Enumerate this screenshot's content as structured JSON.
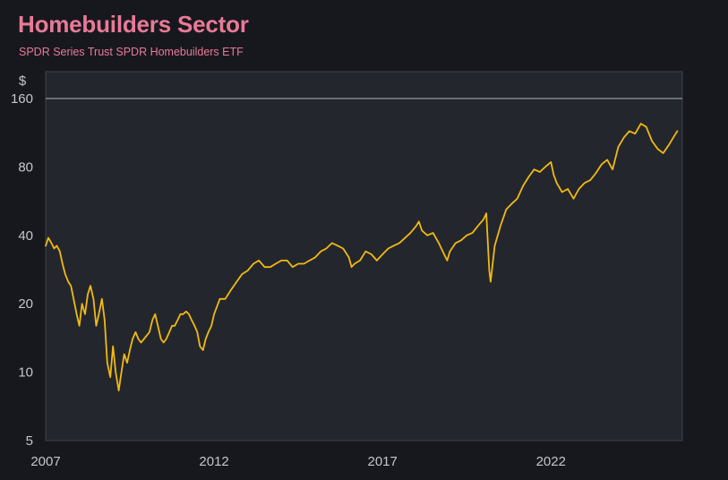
{
  "title": "Homebuilders Sector",
  "subtitle": "SPDR Series Trust SPDR Homebuilders ETF",
  "colors": {
    "background": "#17181d",
    "plot_background": "#23272d",
    "line": "#f2b911",
    "title": "#e87a97",
    "text": "#c4c6cc"
  },
  "chart_data": {
    "type": "line",
    "title": "Homebuilders Sector",
    "subtitle": "SPDR Series Trust SPDR Homebuilders ETF",
    "ylabel": "$",
    "xlabel": "",
    "y_scale": "log2",
    "ylim": [
      5,
      210
    ],
    "xlim": [
      2007.0,
      2025.9
    ],
    "y_ticks": [
      5,
      10,
      20,
      40,
      80,
      160
    ],
    "y_tick_labels": [
      "5",
      "10",
      "20",
      "40",
      "80",
      "160"
    ],
    "x_ticks": [
      2007,
      2012,
      2017,
      2022
    ],
    "x_tick_labels": [
      "2007",
      "2012",
      "2017",
      "2022"
    ],
    "grid": false,
    "series": [
      {
        "values": [
          [
            2007.0,
            36
          ],
          [
            2007.08,
            39
          ],
          [
            2007.17,
            37
          ],
          [
            2007.25,
            35
          ],
          [
            2007.33,
            36
          ],
          [
            2007.42,
            34
          ],
          [
            2007.5,
            30
          ],
          [
            2007.58,
            27
          ],
          [
            2007.67,
            25
          ],
          [
            2007.75,
            24
          ],
          [
            2007.83,
            21
          ],
          [
            2007.92,
            18
          ],
          [
            2008.0,
            16
          ],
          [
            2008.08,
            20
          ],
          [
            2008.17,
            18
          ],
          [
            2008.25,
            22
          ],
          [
            2008.33,
            24
          ],
          [
            2008.42,
            21
          ],
          [
            2008.5,
            16
          ],
          [
            2008.58,
            18
          ],
          [
            2008.67,
            21
          ],
          [
            2008.75,
            17
          ],
          [
            2008.83,
            11
          ],
          [
            2008.92,
            9.5
          ],
          [
            2009.0,
            13
          ],
          [
            2009.08,
            10
          ],
          [
            2009.17,
            8.3
          ],
          [
            2009.25,
            10
          ],
          [
            2009.33,
            12
          ],
          [
            2009.42,
            11
          ],
          [
            2009.5,
            12.5
          ],
          [
            2009.58,
            14
          ],
          [
            2009.67,
            15
          ],
          [
            2009.75,
            14
          ],
          [
            2009.83,
            13.5
          ],
          [
            2009.92,
            14
          ],
          [
            2010.0,
            14.5
          ],
          [
            2010.08,
            15
          ],
          [
            2010.17,
            17
          ],
          [
            2010.25,
            18
          ],
          [
            2010.33,
            16
          ],
          [
            2010.42,
            14
          ],
          [
            2010.5,
            13.5
          ],
          [
            2010.58,
            14
          ],
          [
            2010.67,
            15
          ],
          [
            2010.75,
            16
          ],
          [
            2010.83,
            16
          ],
          [
            2010.92,
            17
          ],
          [
            2011.0,
            18
          ],
          [
            2011.08,
            18
          ],
          [
            2011.17,
            18.5
          ],
          [
            2011.25,
            18
          ],
          [
            2011.33,
            17
          ],
          [
            2011.42,
            16
          ],
          [
            2011.5,
            15
          ],
          [
            2011.58,
            13
          ],
          [
            2011.67,
            12.5
          ],
          [
            2011.75,
            14
          ],
          [
            2011.83,
            15
          ],
          [
            2011.92,
            16
          ],
          [
            2012.0,
            18
          ],
          [
            2012.17,
            21
          ],
          [
            2012.33,
            21
          ],
          [
            2012.5,
            23
          ],
          [
            2012.67,
            25
          ],
          [
            2012.83,
            27
          ],
          [
            2013.0,
            28
          ],
          [
            2013.17,
            30
          ],
          [
            2013.33,
            31
          ],
          [
            2013.5,
            29
          ],
          [
            2013.67,
            29
          ],
          [
            2013.83,
            30
          ],
          [
            2014.0,
            31
          ],
          [
            2014.17,
            31
          ],
          [
            2014.33,
            29
          ],
          [
            2014.5,
            30
          ],
          [
            2014.67,
            30
          ],
          [
            2014.83,
            31
          ],
          [
            2015.0,
            32
          ],
          [
            2015.17,
            34
          ],
          [
            2015.33,
            35
          ],
          [
            2015.5,
            37
          ],
          [
            2015.67,
            36
          ],
          [
            2015.83,
            35
          ],
          [
            2016.0,
            32
          ],
          [
            2016.08,
            29
          ],
          [
            2016.17,
            30
          ],
          [
            2016.33,
            31
          ],
          [
            2016.5,
            34
          ],
          [
            2016.67,
            33
          ],
          [
            2016.83,
            31
          ],
          [
            2017.0,
            33
          ],
          [
            2017.17,
            35
          ],
          [
            2017.33,
            36
          ],
          [
            2017.5,
            37
          ],
          [
            2017.67,
            39
          ],
          [
            2017.83,
            41
          ],
          [
            2018.0,
            44
          ],
          [
            2018.08,
            46
          ],
          [
            2018.17,
            42
          ],
          [
            2018.33,
            40
          ],
          [
            2018.5,
            41
          ],
          [
            2018.67,
            37
          ],
          [
            2018.83,
            33
          ],
          [
            2018.92,
            31
          ],
          [
            2019.0,
            34
          ],
          [
            2019.17,
            37
          ],
          [
            2019.33,
            38
          ],
          [
            2019.5,
            40
          ],
          [
            2019.67,
            41
          ],
          [
            2019.83,
            44
          ],
          [
            2020.0,
            47
          ],
          [
            2020.08,
            50
          ],
          [
            2020.17,
            28
          ],
          [
            2020.21,
            25
          ],
          [
            2020.33,
            36
          ],
          [
            2020.5,
            44
          ],
          [
            2020.67,
            52
          ],
          [
            2020.83,
            55
          ],
          [
            2021.0,
            58
          ],
          [
            2021.17,
            66
          ],
          [
            2021.33,
            72
          ],
          [
            2021.5,
            78
          ],
          [
            2021.67,
            76
          ],
          [
            2021.83,
            80
          ],
          [
            2022.0,
            84
          ],
          [
            2022.08,
            74
          ],
          [
            2022.17,
            68
          ],
          [
            2022.33,
            62
          ],
          [
            2022.5,
            64
          ],
          [
            2022.67,
            58
          ],
          [
            2022.83,
            64
          ],
          [
            2023.0,
            68
          ],
          [
            2023.17,
            70
          ],
          [
            2023.33,
            75
          ],
          [
            2023.5,
            82
          ],
          [
            2023.67,
            86
          ],
          [
            2023.83,
            78
          ],
          [
            2024.0,
            98
          ],
          [
            2024.17,
            108
          ],
          [
            2024.33,
            115
          ],
          [
            2024.5,
            112
          ],
          [
            2024.67,
            124
          ],
          [
            2024.83,
            120
          ],
          [
            2025.0,
            104
          ],
          [
            2025.17,
            96
          ],
          [
            2025.33,
            92
          ],
          [
            2025.5,
            100
          ],
          [
            2025.67,
            110
          ],
          [
            2025.75,
            115
          ]
        ]
      }
    ]
  }
}
